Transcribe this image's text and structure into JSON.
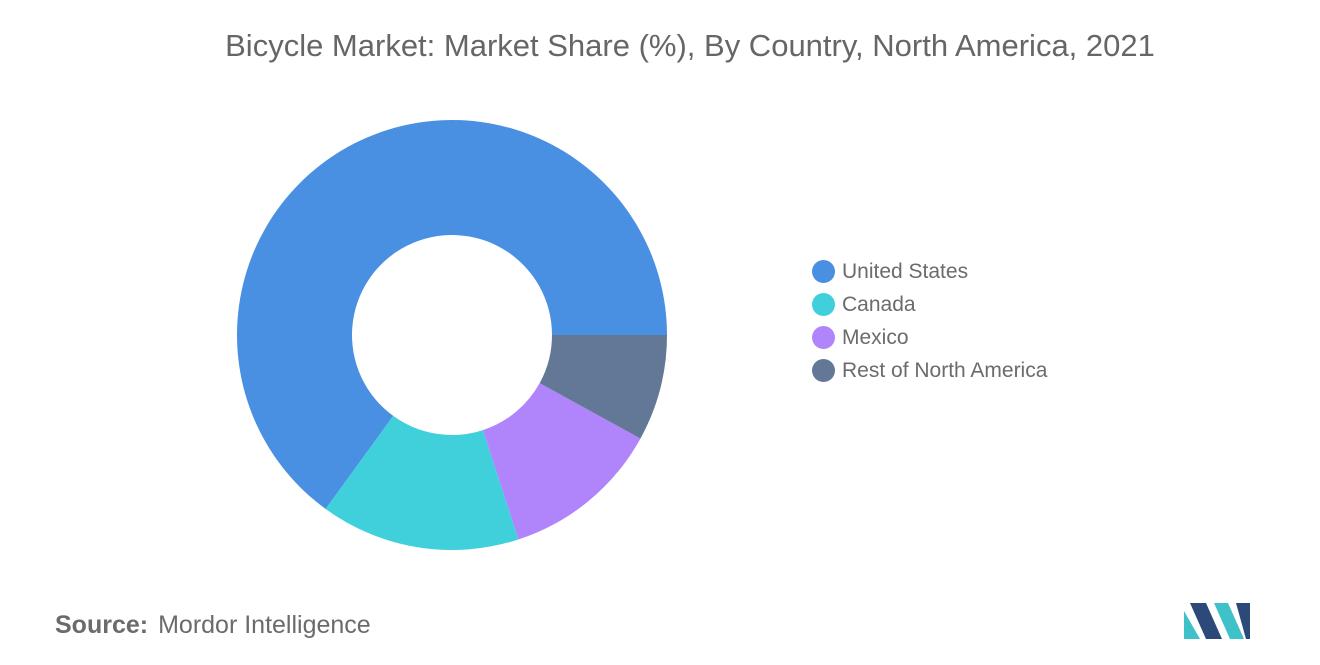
{
  "chart_data": {
    "type": "pie",
    "donut": true,
    "title": "Bicycle Market: Market Share (%), By Country, North America, 2021",
    "categories": [
      "United States",
      "Canada",
      "Mexico",
      "Rest of North America"
    ],
    "values": [
      65,
      15,
      12,
      8
    ],
    "colors": [
      "#4a90e2",
      "#40d0db",
      "#b084fa",
      "#637897"
    ],
    "legend_position": "right"
  },
  "source": {
    "label": "Source:",
    "value": "Mordor Intelligence"
  },
  "logo": {
    "icon": "mordor-intelligence-logo-icon",
    "colors": [
      "#2b4a7a",
      "#3fc1c9"
    ]
  }
}
